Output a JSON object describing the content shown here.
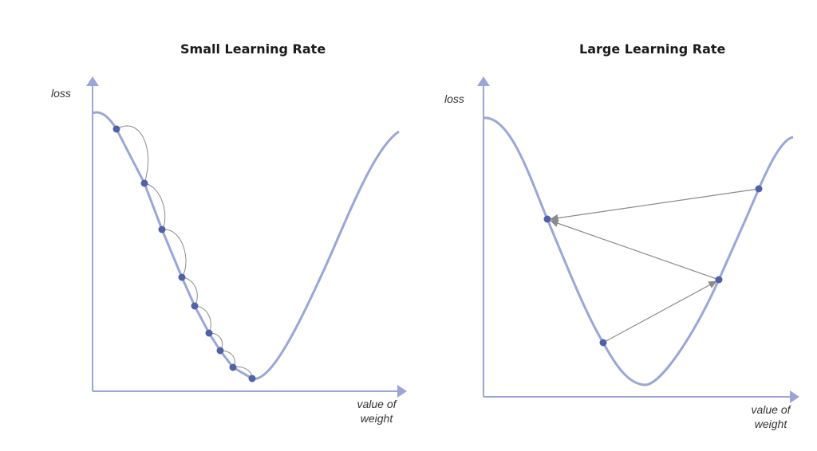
{
  "left_panel": {
    "title": "Small Learning Rate",
    "y_label": "loss",
    "x_label_line1": "value of",
    "x_label_line2": "weight"
  },
  "right_panel": {
    "title": "Large Learning Rate",
    "y_label": "loss",
    "x_label_line1": "value of",
    "x_label_line2": "weight"
  },
  "colors": {
    "curve": "#9aa6d6",
    "axis": "#9aa6d6",
    "point": "#4f62a8",
    "arrow": "#8a8a8a"
  }
}
